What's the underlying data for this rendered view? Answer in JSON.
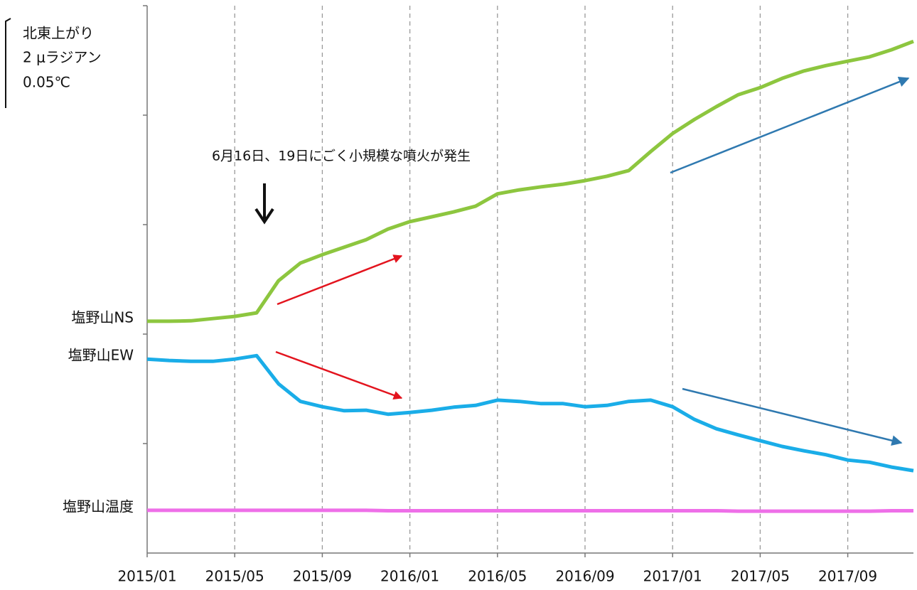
{
  "chart_data": {
    "type": "line",
    "annotation": "6月16日、19日にごく小規模な噴火が発生",
    "scale_label": "北東上がり",
    "scale_tilt": "2 μラジアン",
    "scale_temp": "0.05℃",
    "x": [
      "2015/01",
      "2015/02",
      "2015/03",
      "2015/04",
      "2015/05",
      "2015/06",
      "2015/07",
      "2015/08",
      "2015/09",
      "2015/10",
      "2015/11",
      "2015/12",
      "2016/01",
      "2016/02",
      "2016/03",
      "2016/04",
      "2016/05",
      "2016/06",
      "2016/07",
      "2016/08",
      "2016/09",
      "2016/10",
      "2016/11",
      "2016/12",
      "2017/01",
      "2017/02",
      "2017/03",
      "2017/04",
      "2017/05",
      "2017/06",
      "2017/07",
      "2017/08",
      "2017/09",
      "2017/10",
      "2017/11",
      "2017/12"
    ],
    "xlim": [
      "2015/01",
      "2017/12"
    ],
    "xticks": [
      "2015/01",
      "2015/05",
      "2015/09",
      "2016/01",
      "2016/05",
      "2016/09",
      "2017/01",
      "2017/05",
      "2017/09"
    ],
    "ylim": [
      0,
      12.42
    ],
    "grid": true,
    "series": [
      {
        "name": "塩野山NS",
        "color": "#8dc63f",
        "values": [
          5.26,
          5.26,
          5.27,
          5.32,
          5.37,
          5.45,
          6.18,
          6.58,
          6.77,
          6.94,
          7.11,
          7.35,
          7.52,
          7.63,
          7.74,
          7.87,
          8.15,
          8.24,
          8.31,
          8.37,
          8.45,
          8.55,
          8.68,
          9.11,
          9.52,
          9.84,
          10.13,
          10.4,
          10.56,
          10.77,
          10.94,
          11.06,
          11.16,
          11.26,
          11.42,
          11.61
        ]
      },
      {
        "name": "塩野山EW",
        "color": "#1aade8",
        "values": [
          4.4,
          4.37,
          4.35,
          4.35,
          4.4,
          4.48,
          3.84,
          3.44,
          3.32,
          3.23,
          3.24,
          3.15,
          3.19,
          3.24,
          3.31,
          3.35,
          3.47,
          3.44,
          3.39,
          3.39,
          3.32,
          3.35,
          3.44,
          3.47,
          3.32,
          3.03,
          2.82,
          2.68,
          2.55,
          2.42,
          2.32,
          2.23,
          2.11,
          2.06,
          1.95,
          1.87
        ]
      },
      {
        "name": "塩野山温度",
        "color": "#ee6fe8",
        "values": [
          0.97,
          0.97,
          0.97,
          0.97,
          0.97,
          0.97,
          0.97,
          0.97,
          0.97,
          0.97,
          0.97,
          0.96,
          0.96,
          0.96,
          0.96,
          0.96,
          0.96,
          0.96,
          0.96,
          0.96,
          0.96,
          0.96,
          0.96,
          0.96,
          0.96,
          0.96,
          0.96,
          0.95,
          0.95,
          0.95,
          0.95,
          0.95,
          0.95,
          0.95,
          0.96,
          0.96
        ]
      }
    ]
  }
}
